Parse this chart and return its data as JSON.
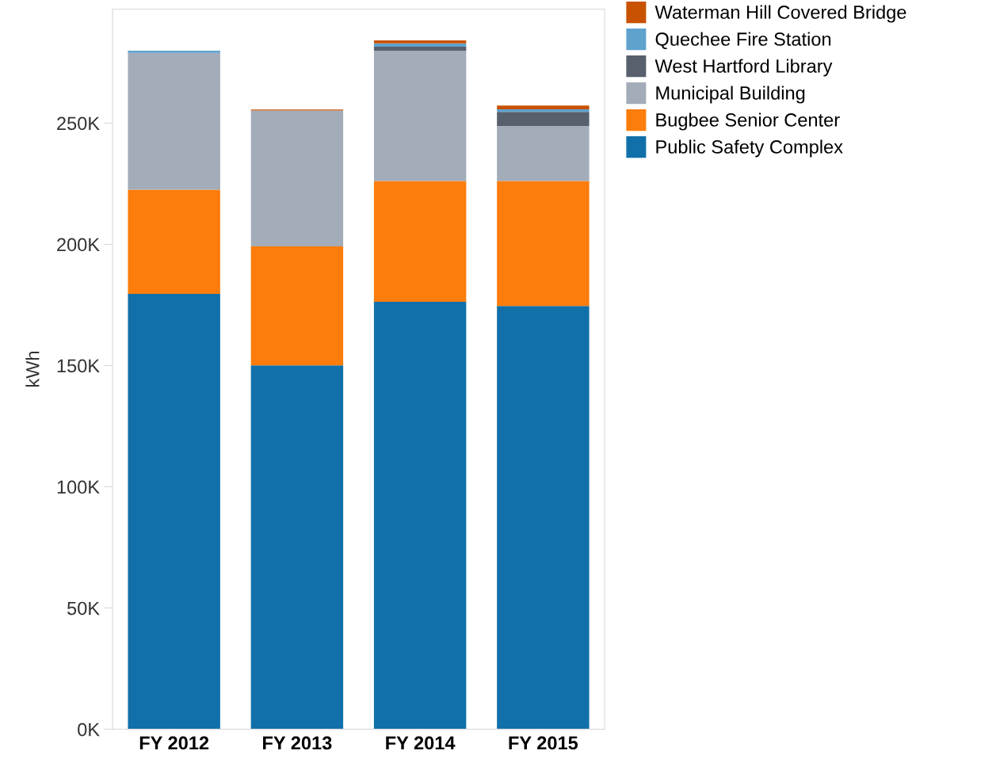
{
  "chart_data": {
    "type": "bar",
    "stacked": true,
    "ylabel": "kWh",
    "categories": [
      "FY 2012",
      "FY 2013",
      "FY 2014",
      "FY 2015"
    ],
    "ylim": [
      0,
      297000
    ],
    "yticks": [
      {
        "value": 0,
        "label": "0K"
      },
      {
        "value": 50000,
        "label": "50K"
      },
      {
        "value": 100000,
        "label": "100K"
      },
      {
        "value": 150000,
        "label": "150K"
      },
      {
        "value": 200000,
        "label": "200K"
      },
      {
        "value": 250000,
        "label": "250K"
      }
    ],
    "grid": false,
    "legend": "top right",
    "series": [
      {
        "name": "Public Safety Complex",
        "color": "#1170aa",
        "values": [
          179600,
          150100,
          176300,
          174600
        ]
      },
      {
        "name": "Bugbee Senior Center",
        "color": "#fc7d0b",
        "values": [
          42900,
          49100,
          49800,
          51500
        ]
      },
      {
        "name": "Municipal Building",
        "color": "#a3acb9",
        "values": [
          56500,
          56000,
          53700,
          22700
        ]
      },
      {
        "name": "West Hartford Library",
        "color": "#57606c",
        "values": [
          0,
          0,
          1700,
          5800
        ]
      },
      {
        "name": "Quechee Fire Station",
        "color": "#5fa2ce",
        "values": [
          900,
          null,
          1400,
          1100
        ]
      },
      {
        "name": "Waterman Hill Covered Bridge",
        "color": "#c85200",
        "values": [
          0,
          400,
          1200,
          1500
        ]
      }
    ]
  }
}
